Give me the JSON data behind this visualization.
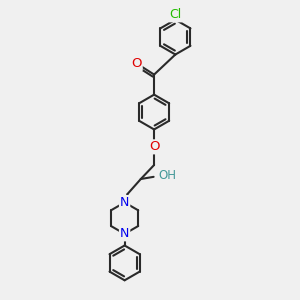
{
  "background_color": "#f0f0f0",
  "bond_color": "#2a2a2a",
  "bond_width": 1.5,
  "atom_colors": {
    "O": "#e00000",
    "N": "#0000ee",
    "Cl": "#22bb00",
    "OH": "#449999",
    "C": "#2a2a2a"
  },
  "font_size": 8.5
}
